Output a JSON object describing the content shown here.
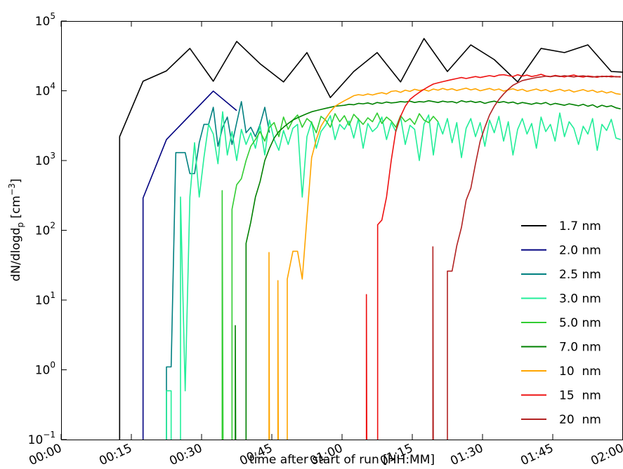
{
  "chart_data": {
    "type": "line",
    "log_y": true,
    "legend": "lower right",
    "xlabel": "time after start of run [HH:MM]",
    "ylabel": {
      "text": "dN/dlogd",
      "sub": "p",
      "unit": " [cm",
      "sup": "−3",
      "close": "]"
    },
    "xlim": [
      0,
      120
    ],
    "ylim": [
      0.1,
      100000
    ],
    "xticks": [
      {
        "value": 0,
        "label": "00:00"
      },
      {
        "value": 15,
        "label": "00:15"
      },
      {
        "value": 30,
        "label": "00:30"
      },
      {
        "value": 45,
        "label": "00:45"
      },
      {
        "value": 60,
        "label": "01:00"
      },
      {
        "value": 75,
        "label": "01:15"
      },
      {
        "value": 90,
        "label": "01:30"
      },
      {
        "value": 105,
        "label": "01:45"
      },
      {
        "value": 120,
        "label": "02:00"
      }
    ],
    "yticks": [
      {
        "value": 0.1,
        "label": "10",
        "exponent": "−1"
      },
      {
        "value": 1,
        "label": "10",
        "exponent": "0"
      },
      {
        "value": 10,
        "label": "10",
        "exponent": "1"
      },
      {
        "value": 100,
        "label": "10",
        "exponent": "2"
      },
      {
        "value": 1000,
        "label": "10",
        "exponent": "3"
      },
      {
        "value": 10000,
        "label": "10",
        "exponent": "4"
      },
      {
        "value": 100000,
        "label": "10",
        "exponent": "5"
      }
    ],
    "series": [
      {
        "name": "1.7 nm",
        "color": "#000000",
        "x": [
          12.5,
          12.5,
          17.5,
          22.5,
          27.5,
          32.5,
          37.5,
          42.5,
          47.5,
          52.5,
          57.5,
          62.5,
          67.5,
          72.5,
          77.5,
          82.5,
          87.5,
          92.5,
          97.5,
          102.5,
          107.5,
          112.5,
          117.5,
          120
        ],
        "values": [
          0,
          2200,
          13700,
          19300,
          40500,
          13700,
          51000,
          24400,
          13400,
          35300,
          8000,
          18900,
          35300,
          13400,
          56100,
          18900,
          45500,
          28000,
          13400,
          40500,
          35300,
          45500,
          18900,
          18500
        ]
      },
      {
        "name": "2.0 nm",
        "color": "#000080",
        "x": [
          17.5,
          17.5,
          22.5,
          32.5,
          37.5
        ],
        "values": [
          0,
          290,
          2000,
          9900,
          5200
        ]
      },
      {
        "name": "2.5 nm",
        "color": "#008080",
        "x": [
          22.5,
          22.5,
          23.5,
          24.5,
          25.5,
          26.5,
          27.5,
          28.5,
          29.5,
          30.5,
          31.5,
          32.5,
          33.5,
          34.5,
          35.5,
          36.5,
          37.5,
          38.5,
          39.5,
          40.5,
          41.5,
          42.5,
          43.5,
          44.5
        ],
        "values": [
          0,
          1.1,
          1.1,
          1300,
          1300,
          1300,
          650,
          650,
          1800,
          3300,
          3300,
          5800,
          1600,
          3000,
          4200,
          1700,
          3500,
          7000,
          2500,
          3000,
          2200,
          3300,
          5800,
          2500
        ]
      },
      {
        "name": "3.0 nm",
        "color": "#22ee99",
        "x": [
          22.5,
          22.5,
          23.5,
          23.5,
          25.5,
          25.5,
          26.5,
          27.5,
          28.5,
          29.5,
          30.5,
          31.5,
          32.5,
          33.5,
          34.5,
          35.5,
          36.5,
          37.5,
          38.5,
          39.5,
          40.5,
          41.5,
          42.5,
          43.5,
          44.5,
          45.5,
          46.5,
          47.5,
          48.5,
          49.5,
          50.5,
          51.5,
          52.5,
          53.5,
          54.5,
          55.5,
          56.5,
          57.5,
          58.5,
          59.5,
          60.5,
          61.5,
          62.5,
          63.5,
          64.5,
          65.5,
          66.5,
          67.5,
          68.5,
          69.5,
          70.5,
          71.5,
          72.5,
          73.5,
          74.5,
          75.5,
          76.5,
          77.5,
          78.5,
          79.5,
          80.5,
          81.5,
          82.5,
          83.5,
          84.5,
          85.5,
          86.5,
          87.5,
          88.5,
          89.5,
          90.5,
          91.5,
          92.5,
          93.5,
          94.5,
          95.5,
          96.5,
          97.5,
          98.5,
          99.5,
          100.5,
          101.5,
          102.5,
          103.5,
          104.5,
          105.5,
          106.5,
          107.5,
          108.5,
          109.5,
          110.5,
          111.5,
          112.5,
          113.5,
          114.5,
          115.5,
          116.5,
          117.5,
          118.5,
          119.5
        ],
        "values": [
          0,
          0.5,
          0.5,
          0,
          0,
          300,
          0.5,
          300,
          1800,
          300,
          1100,
          3300,
          2400,
          900,
          5000,
          1200,
          2600,
          1000,
          2800,
          1700,
          2500,
          1500,
          3200,
          1200,
          3800,
          2000,
          1400,
          2700,
          1700,
          2900,
          3300,
          300,
          2200,
          3600,
          1500,
          2600,
          3200,
          4400,
          2000,
          3300,
          2800,
          3700,
          2100,
          4000,
          1500,
          3400,
          2600,
          3000,
          4200,
          2000,
          3500,
          2600,
          4200,
          1700,
          3200,
          2800,
          1000,
          3300,
          4500,
          1200,
          3600,
          2400,
          4000,
          1800,
          3500,
          1100,
          2900,
          4000,
          2200,
          3500,
          1600,
          3800,
          2500,
          4300,
          1900,
          3600,
          1200,
          2800,
          4000,
          2400,
          3400,
          1500,
          4200,
          2600,
          3300,
          1900,
          4800,
          2200,
          3600,
          2900,
          1700,
          3100,
          2400,
          4000,
          1400,
          3300,
          2700,
          3900,
          2100,
          2000
        ]
      },
      {
        "name": "5.0 nm",
        "color": "#32cd32",
        "x": [
          34.4,
          34.4,
          34.6,
          36.5,
          36.5,
          37.5,
          38.5,
          39.5,
          40.5,
          41.5,
          42.5,
          43.5,
          44.5,
          45.5,
          46.5,
          47.5,
          48.5,
          49.5,
          50.5,
          51.5,
          52.5,
          53.5,
          54.5,
          55.5,
          56.5,
          57.5,
          58.5,
          59.5,
          60.5,
          61.5,
          62.5,
          63.5,
          64.5,
          65.5,
          66.5,
          67.5,
          68.5,
          69.5,
          70.5,
          71.5,
          72.5,
          73.5,
          74.5,
          75.5,
          76.5,
          77.5,
          78.5,
          79.5,
          80.5
        ],
        "values": [
          0,
          370,
          0,
          0,
          200,
          450,
          550,
          1000,
          1600,
          2000,
          2600,
          1900,
          3000,
          3500,
          2200,
          4200,
          2800,
          3800,
          4500,
          3000,
          4000,
          3500,
          2500,
          4300,
          3800,
          3000,
          4700,
          3600,
          4400,
          3200,
          4600,
          3900,
          3300,
          4100,
          3600,
          4800,
          3400,
          4200,
          3700,
          3000,
          4400,
          3600,
          4000,
          3300,
          4700,
          3800,
          3500,
          4300,
          3600
        ]
      },
      {
        "name": "7.0 nm",
        "color": "#008000",
        "x": [
          37.2,
          37.2,
          37.3,
          39.5,
          39.5,
          40.5,
          41.5,
          42.5,
          43.5,
          44.5,
          45.5,
          46.5,
          47.5,
          48.5,
          49.5,
          50.5,
          51.5,
          52.5,
          53.5,
          54.5,
          55.5,
          56.5,
          57.5,
          58.5,
          59.5,
          60.5,
          61.5,
          62.5,
          63.5,
          64.5,
          65.5,
          66.5,
          67.5,
          68.5,
          69.5,
          70.5,
          71.5,
          72.5,
          73.5,
          74.5,
          75.5,
          76.5,
          77.5,
          78.5,
          79.5,
          80.5,
          81.5,
          82.5,
          83.5,
          84.5,
          85.5,
          86.5,
          87.5,
          88.5,
          89.5,
          90.5,
          91.5,
          92.5,
          93.5,
          94.5,
          95.5,
          96.5,
          97.5,
          98.5,
          99.5,
          100.5,
          101.5,
          102.5,
          103.5,
          104.5,
          105.5,
          106.5,
          107.5,
          108.5,
          109.5,
          110.5,
          111.5,
          112.5,
          113.5,
          114.5,
          115.5,
          116.5,
          117.5,
          118.5,
          119.5
        ],
        "values": [
          0,
          4.3,
          0,
          0,
          65,
          130,
          300,
          500,
          1000,
          1500,
          2100,
          2600,
          3000,
          3400,
          3800,
          4100,
          4400,
          4700,
          5000,
          5200,
          5400,
          5600,
          5800,
          6000,
          6100,
          6200,
          6400,
          6300,
          6600,
          6500,
          6700,
          6400,
          6800,
          6600,
          6900,
          6700,
          6800,
          7000,
          6900,
          7100,
          6800,
          7000,
          6900,
          7200,
          7000,
          6800,
          7100,
          6900,
          7000,
          6700,
          7200,
          6900,
          7100,
          6800,
          7000,
          6600,
          6900,
          7100,
          6800,
          7000,
          6700,
          6900,
          6500,
          6800,
          6600,
          6400,
          6700,
          6500,
          6800,
          6300,
          6600,
          6400,
          6200,
          6500,
          6300,
          6100,
          6400,
          6000,
          6300,
          5800,
          6200,
          5900,
          6100,
          5700,
          5500
        ]
      },
      {
        "name": "10  nm",
        "color": "#ffa500",
        "x": [
          44.4,
          44.4,
          44.5,
          46.3,
          46.3,
          46.4,
          48.3,
          48.3,
          49.5,
          50.5,
          51.5,
          52.5,
          53.5,
          54.5,
          55.5,
          56.5,
          57.5,
          58.5,
          59.5,
          60.5,
          61.5,
          62.5,
          63.5,
          64.5,
          65.5,
          66.5,
          67.5,
          68.5,
          69.5,
          70.5,
          71.5,
          72.5,
          73.5,
          74.5,
          75.5,
          76.5,
          77.5,
          78.5,
          79.5,
          80.5,
          81.5,
          82.5,
          83.5,
          84.5,
          85.5,
          86.5,
          87.5,
          88.5,
          89.5,
          90.5,
          91.5,
          92.5,
          93.5,
          94.5,
          95.5,
          96.5,
          97.5,
          98.5,
          99.5,
          100.5,
          101.5,
          102.5,
          103.5,
          104.5,
          105.5,
          106.5,
          107.5,
          108.5,
          109.5,
          110.5,
          111.5,
          112.5,
          113.5,
          114.5,
          115.5,
          116.5,
          117.5,
          118.5,
          119.5
        ],
        "values": [
          0,
          48,
          0,
          0,
          19,
          0,
          0,
          20,
          50,
          50,
          20,
          150,
          1100,
          2000,
          3100,
          4000,
          5000,
          6000,
          6600,
          7200,
          7800,
          8500,
          8800,
          8600,
          9000,
          8700,
          9100,
          9400,
          9000,
          9800,
          10000,
          9500,
          10200,
          9800,
          10500,
          10100,
          10400,
          9900,
          10600,
          10200,
          10800,
          10300,
          10700,
          10100,
          10500,
          10900,
          10300,
          10700,
          10000,
          10400,
          10800,
          10200,
          10600,
          9900,
          10300,
          10700,
          10100,
          10500,
          9800,
          10200,
          10600,
          10000,
          10400,
          9700,
          10100,
          10500,
          9900,
          10300,
          9600,
          10000,
          10400,
          9800,
          10200,
          9500,
          9900,
          9300,
          9700,
          9100,
          8900
        ]
      },
      {
        "name": "15  nm",
        "color": "#ee1111",
        "x": [
          65.2,
          65.2,
          65.3,
          67.6,
          67.6,
          68.5,
          69.5,
          70.5,
          71.5,
          72.5,
          73.5,
          74.5,
          75.5,
          76.5,
          77.5,
          78.5,
          79.5,
          80.5,
          81.5,
          82.5,
          83.5,
          84.5,
          85.5,
          86.5,
          87.5,
          88.5,
          89.5,
          90.5,
          91.5,
          92.5,
          93.5,
          94.5,
          95.5,
          96.5,
          97.5,
          98.5,
          99.5,
          100.5,
          101.5,
          102.5,
          103.5,
          104.5,
          105.5,
          106.5,
          107.5,
          108.5,
          109.5,
          110.5,
          111.5,
          112.5,
          113.5,
          114.5,
          115.5,
          116.5,
          117.5,
          118.5,
          119.5
        ],
        "values": [
          0,
          12,
          0,
          0,
          120,
          140,
          300,
          1000,
          2700,
          4300,
          6000,
          7500,
          8500,
          9500,
          10500,
          11500,
          12500,
          13000,
          13500,
          14000,
          14500,
          15000,
          15500,
          15000,
          15500,
          16000,
          15500,
          16000,
          16500,
          16000,
          16800,
          17000,
          16500,
          16000,
          17000,
          16200,
          16800,
          16000,
          16500,
          17200,
          16300,
          16000,
          16600,
          16200,
          15800,
          16400,
          16800,
          16100,
          15700,
          16300,
          16000,
          15600,
          16200,
          15900,
          16300,
          15800,
          16000
        ]
      },
      {
        "name": "20  nm",
        "color": "#b22222",
        "x": [
          79.4,
          79.4,
          79.5,
          82.5,
          82.5,
          83.5,
          84.5,
          85.5,
          86.5,
          87.5,
          88.5,
          89.5,
          90.5,
          91.5,
          92.5,
          93.5,
          94.5,
          95.5,
          96.5,
          97.5,
          98.5,
          99.5,
          100.5,
          101.5,
          102.5,
          103.5,
          104.5,
          105.5,
          106.5,
          107.5,
          108.5,
          109.5,
          110.5,
          111.5,
          112.5,
          113.5,
          114.5,
          115.5,
          116.5,
          117.5,
          118.5,
          119.5
        ],
        "values": [
          0,
          58,
          0,
          0,
          26,
          26,
          60,
          110,
          270,
          400,
          900,
          1900,
          3000,
          4500,
          6000,
          7500,
          9000,
          10500,
          12000,
          13000,
          14000,
          14500,
          15000,
          15500,
          15800,
          16200,
          15900,
          16300,
          16000,
          16500,
          16100,
          15800,
          16200,
          16400,
          16000,
          15700,
          16100,
          15900,
          16200,
          15800,
          16000,
          15700
        ]
      }
    ]
  }
}
